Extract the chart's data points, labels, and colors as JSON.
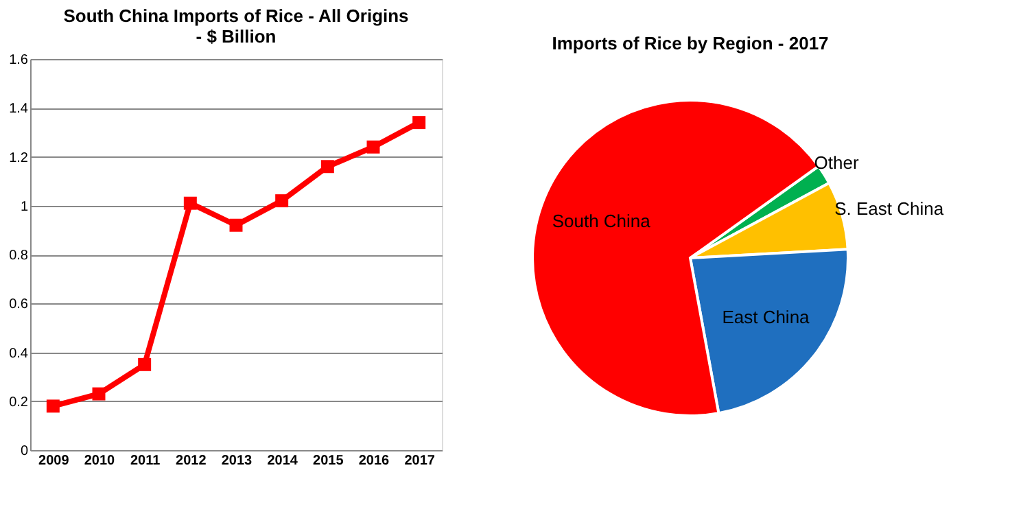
{
  "chart_data": [
    {
      "type": "line",
      "title": [
        "South China Imports of Rice - All Origins",
        "- $ Billion"
      ],
      "categories": [
        "2009",
        "2010",
        "2011",
        "2012",
        "2013",
        "2014",
        "2015",
        "2016",
        "2017"
      ],
      "series": [
        {
          "color": "#ff0000",
          "values": [
            0.18,
            0.23,
            0.35,
            1.01,
            0.92,
            1.02,
            1.16,
            1.24,
            1.34
          ]
        }
      ],
      "ylim": [
        0,
        1.6
      ],
      "yticks": [
        0,
        0.2,
        0.4,
        0.6,
        0.8,
        1,
        1.2,
        1.4,
        1.6
      ],
      "grid": "y",
      "marker": "square",
      "line_style": "solid"
    },
    {
      "type": "pie",
      "title": "Imports of Rice by Region - 2017",
      "categories": [
        "Other",
        "S. East China",
        "East China",
        "South China"
      ],
      "values": [
        2,
        7,
        23,
        68
      ],
      "colors": [
        "#00b050",
        "#ffc000",
        "#1f6fbf",
        "#ff0000"
      ]
    }
  ]
}
